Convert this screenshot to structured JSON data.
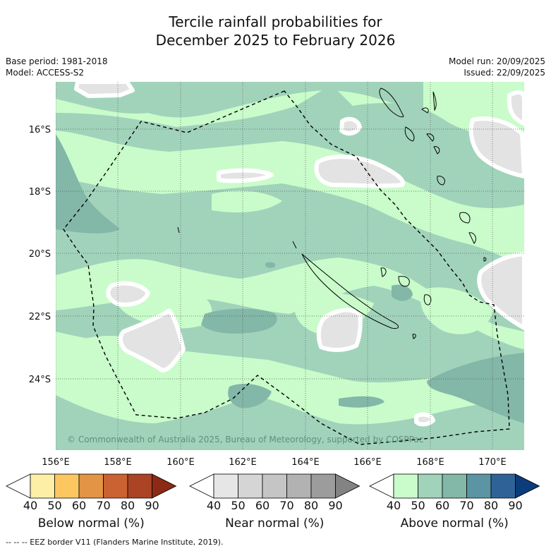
{
  "title": {
    "line1": "Tercile rainfall probabilities for",
    "line2": "December 2025 to February 2026"
  },
  "meta_left": {
    "base_period": "Base period: 1981-2018",
    "model": "Model: ACCESS-S2"
  },
  "meta_right": {
    "model_run": "Model run: 20/09/2025",
    "issued": "Issued: 22/09/2025"
  },
  "map": {
    "lat_labels": [
      "16°S",
      "18°S",
      "20°S",
      "22°S",
      "24°S"
    ],
    "lon_labels": [
      "156°E",
      "158°E",
      "160°E",
      "162°E",
      "164°E",
      "166°E",
      "168°E",
      "170°E"
    ],
    "copyright": "© Commonwealth of Australia 2025, Bureau of Meteorology, supported by COSPPac"
  },
  "colorbars": [
    {
      "name": "below-normal",
      "label": "Below normal (%)",
      "ticks": [
        "40",
        "50",
        "60",
        "70",
        "80",
        "90"
      ],
      "colors": [
        "#ffffff",
        "#fdf0a6",
        "#fcc761",
        "#e39445",
        "#cb6232",
        "#ab4325",
        "#8c2a15"
      ]
    },
    {
      "name": "near-normal",
      "label": "Near normal (%)",
      "ticks": [
        "40",
        "50",
        "60",
        "70",
        "80",
        "90"
      ],
      "colors": [
        "#ffffff",
        "#e6e6e6",
        "#d5d5d5",
        "#c5c5c5",
        "#b2b2b2",
        "#9c9c9c",
        "#838383"
      ]
    },
    {
      "name": "above-normal",
      "label": "Above normal (%)",
      "ticks": [
        "40",
        "50",
        "60",
        "70",
        "80",
        "90"
      ],
      "colors": [
        "#ffffff",
        "#c9fcca",
        "#a1d3bb",
        "#83b7a8",
        "#5b95a3",
        "#2f6398",
        "#0c3c7a"
      ]
    }
  ],
  "footnote": "--  --  -- EEZ border V11 (Flanders Marine Institute, 2019)."
}
